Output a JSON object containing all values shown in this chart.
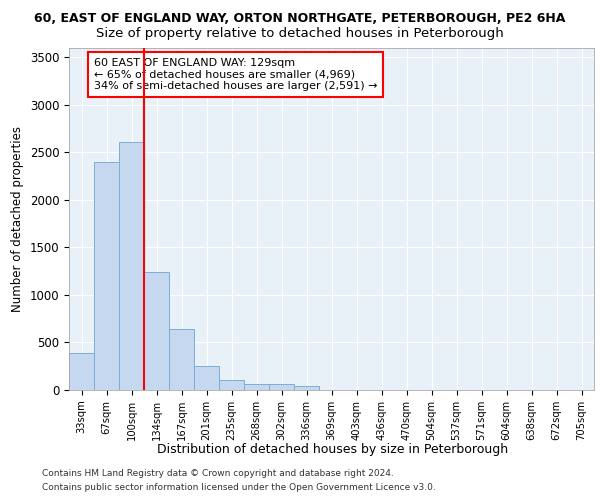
{
  "title1": "60, EAST OF ENGLAND WAY, ORTON NORTHGATE, PETERBOROUGH, PE2 6HA",
  "title2": "Size of property relative to detached houses in Peterborough",
  "xlabel": "Distribution of detached houses by size in Peterborough",
  "ylabel": "Number of detached properties",
  "categories": [
    "33sqm",
    "67sqm",
    "100sqm",
    "134sqm",
    "167sqm",
    "201sqm",
    "235sqm",
    "268sqm",
    "302sqm",
    "336sqm",
    "369sqm",
    "403sqm",
    "436sqm",
    "470sqm",
    "504sqm",
    "537sqm",
    "571sqm",
    "604sqm",
    "638sqm",
    "672sqm",
    "705sqm"
  ],
  "values": [
    390,
    2400,
    2610,
    1245,
    640,
    255,
    100,
    60,
    60,
    45,
    0,
    0,
    0,
    0,
    0,
    0,
    0,
    0,
    0,
    0,
    0
  ],
  "bar_color": "#c5d8f0",
  "bar_edge_color": "#7bafd4",
  "vline_color": "red",
  "annotation_text": "60 EAST OF ENGLAND WAY: 129sqm\n← 65% of detached houses are smaller (4,969)\n34% of semi-detached houses are larger (2,591) →",
  "annotation_box_color": "white",
  "annotation_box_edge": "red",
  "ylim": [
    0,
    3600
  ],
  "yticks": [
    0,
    500,
    1000,
    1500,
    2000,
    2500,
    3000,
    3500
  ],
  "footer1": "Contains HM Land Registry data © Crown copyright and database right 2024.",
  "footer2": "Contains public sector information licensed under the Open Government Licence v3.0.",
  "bg_color": "#e8f0f8",
  "grid_color": "white",
  "title1_fontsize": 9,
  "title2_fontsize": 9.5,
  "xlabel_fontsize": 9,
  "ylabel_fontsize": 8.5,
  "footer_fontsize": 6.5
}
